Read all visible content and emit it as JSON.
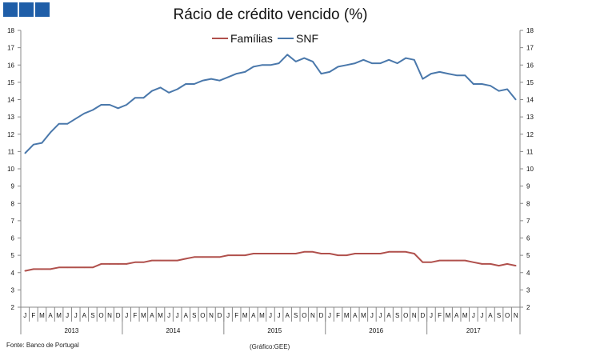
{
  "header": {
    "logo_squares": 3
  },
  "footer": {
    "source": "Fonte: Banco de Portugal",
    "credit": "(Gráfico:GEE)"
  },
  "colors": {
    "familias": "#b0504c",
    "snf": "#4a78ab",
    "logo": "#1f5ea8"
  },
  "chart_data": {
    "type": "line",
    "title": "Rácio de crédito vencido (%)",
    "xlabel": "",
    "ylabel": "",
    "ylim": [
      2,
      18
    ],
    "yticks": [
      2,
      3,
      4,
      5,
      6,
      7,
      8,
      9,
      10,
      11,
      12,
      13,
      14,
      15,
      16,
      17,
      18
    ],
    "legend": {
      "placement": "top-center",
      "entries": [
        "Famílias",
        "SNF"
      ]
    },
    "years": [
      {
        "label": "2013",
        "months": 12
      },
      {
        "label": "2014",
        "months": 12
      },
      {
        "label": "2015",
        "months": 12
      },
      {
        "label": "2016",
        "months": 12
      },
      {
        "label": "2017",
        "months": 11
      }
    ],
    "month_labels": [
      "J",
      "F",
      "M",
      "A",
      "M",
      "J",
      "J",
      "A",
      "S",
      "O",
      "N",
      "D"
    ],
    "series": [
      {
        "name": "Famílias",
        "values": [
          4.1,
          4.2,
          4.2,
          4.2,
          4.3,
          4.3,
          4.3,
          4.3,
          4.3,
          4.5,
          4.5,
          4.5,
          4.5,
          4.6,
          4.6,
          4.7,
          4.7,
          4.7,
          4.7,
          4.8,
          4.9,
          4.9,
          4.9,
          4.9,
          5.0,
          5.0,
          5.0,
          5.1,
          5.1,
          5.1,
          5.1,
          5.1,
          5.1,
          5.2,
          5.2,
          5.1,
          5.1,
          5.0,
          5.0,
          5.1,
          5.1,
          5.1,
          5.1,
          5.2,
          5.2,
          5.2,
          5.1,
          4.6,
          4.6,
          4.7,
          4.7,
          4.7,
          4.7,
          4.6,
          4.5,
          4.5,
          4.4,
          4.5,
          4.4
        ]
      },
      {
        "name": "SNF",
        "values": [
          10.9,
          11.4,
          11.5,
          12.1,
          12.6,
          12.6,
          12.9,
          13.2,
          13.4,
          13.7,
          13.7,
          13.5,
          13.7,
          14.1,
          14.1,
          14.5,
          14.7,
          14.4,
          14.6,
          14.9,
          14.9,
          15.1,
          15.2,
          15.1,
          15.3,
          15.5,
          15.6,
          15.9,
          16.0,
          16.0,
          16.1,
          16.6,
          16.2,
          16.4,
          16.2,
          15.5,
          15.6,
          15.9,
          16.0,
          16.1,
          16.3,
          16.1,
          16.1,
          16.3,
          16.1,
          16.4,
          16.3,
          15.2,
          15.5,
          15.6,
          15.5,
          15.4,
          15.4,
          14.9,
          14.9,
          14.8,
          14.5,
          14.6,
          14.0
        ]
      }
    ]
  }
}
